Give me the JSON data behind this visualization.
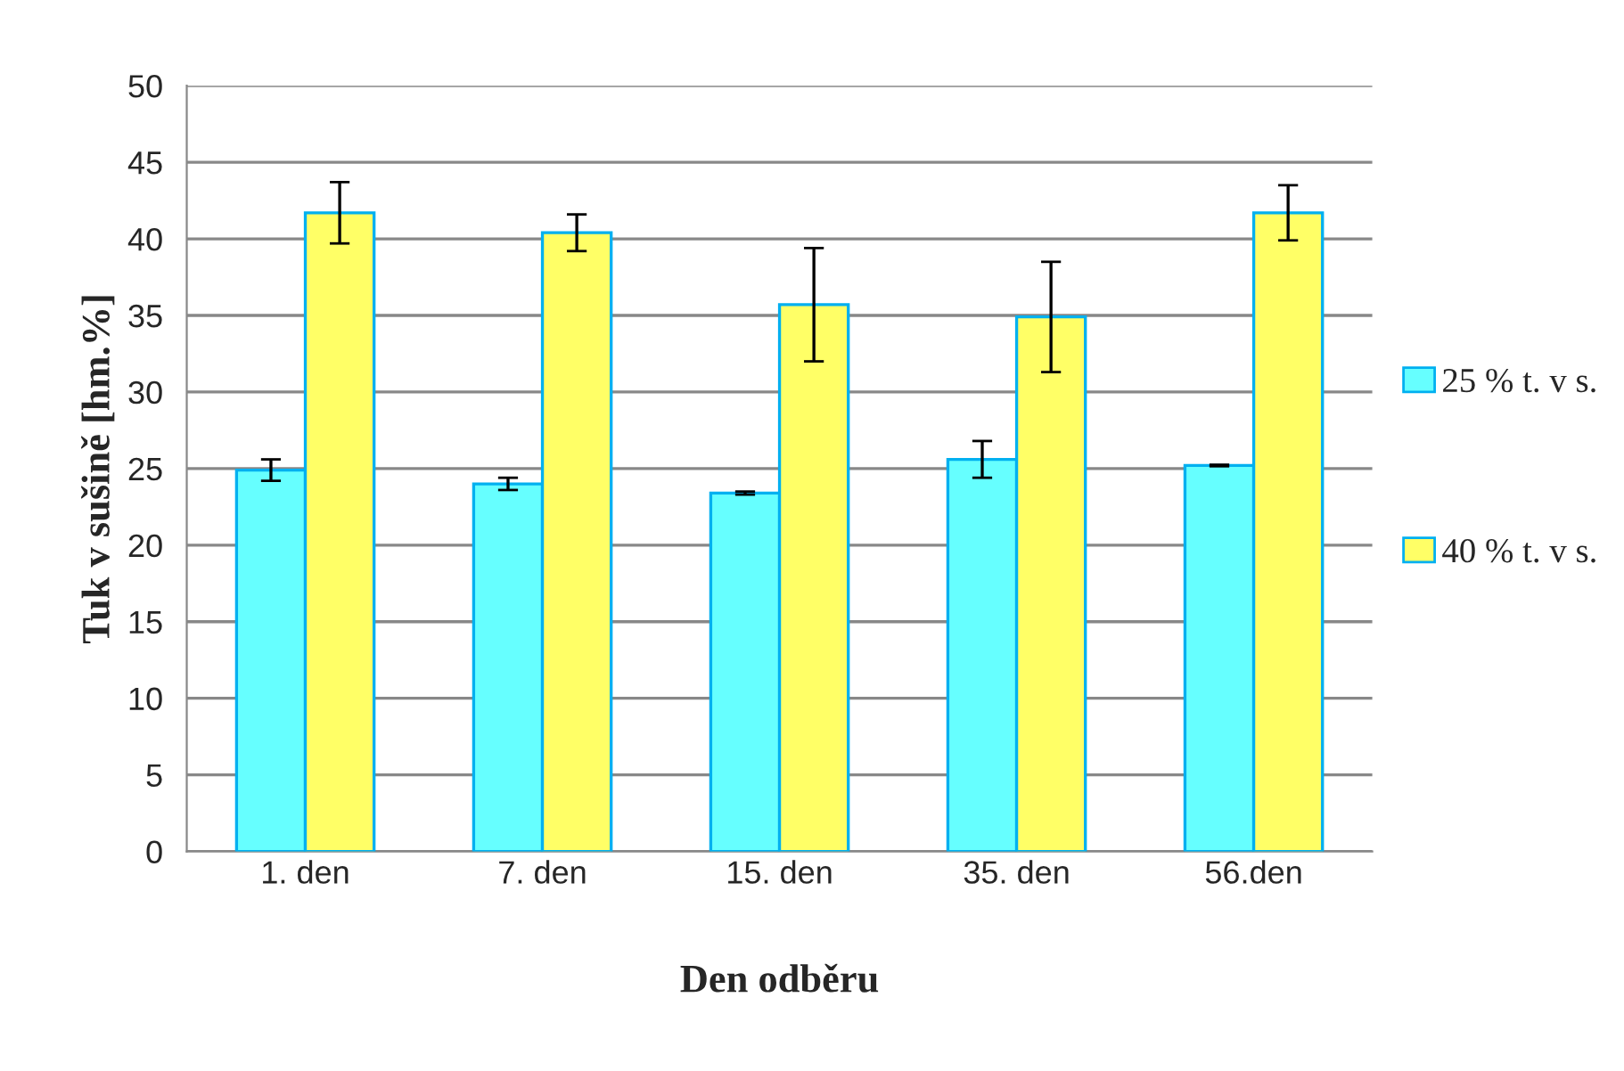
{
  "chart_data": {
    "type": "bar",
    "xlabel": "Den odběru",
    "ylabel": "Tuk v sušině [hm.%]",
    "categories": [
      "1. den",
      "7. den",
      "15. den",
      "35. den",
      "56.den"
    ],
    "series": [
      {
        "name": "25 % t. v s.",
        "color": "#66ffff",
        "values": [
          24.9,
          24.0,
          23.4,
          25.6,
          25.2
        ],
        "errors": [
          0.7,
          0.4,
          0.1,
          1.2,
          0.05
        ]
      },
      {
        "name": "40 % t. v s.",
        "color": "#ffff66",
        "values": [
          41.7,
          40.4,
          35.7,
          34.9,
          41.7
        ],
        "errors": [
          2.0,
          1.2,
          3.7,
          3.6,
          1.8
        ]
      }
    ],
    "ylim": [
      0,
      50
    ],
    "yticks": [
      0,
      5,
      10,
      15,
      20,
      25,
      30,
      35,
      40,
      45,
      50
    ],
    "grid": "y",
    "legend": "right"
  }
}
